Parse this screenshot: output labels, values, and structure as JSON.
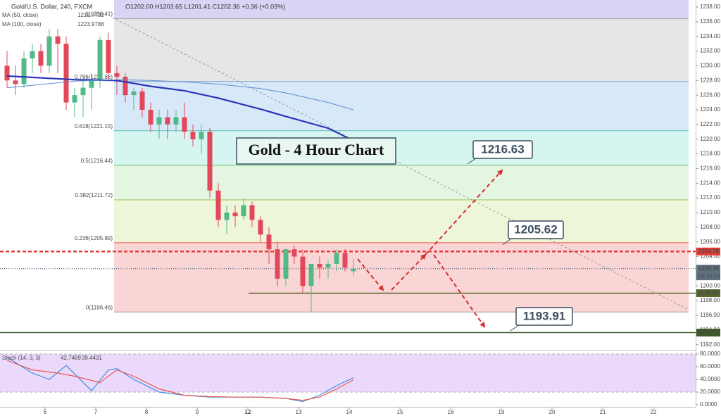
{
  "header": {
    "symbol": "Gold/U.S. Dollar, 240, FXCM",
    "ohlc": "O1202.00 H1203.65 L1201.41 C1202.36 +0.36 (+0.03%)"
  },
  "chart_data": [
    {
      "type": "candlestick",
      "title": "Gold - 4 Hour Chart",
      "up_color": "#53b987",
      "down_color": "#e2485a",
      "open": [
        1230,
        1228,
        1227.5,
        1231,
        1232,
        1230,
        1234,
        1233,
        1225,
        1226,
        1227,
        1228,
        1233.5,
        1229,
        1228.5,
        1226,
        1226.5,
        1224,
        1222,
        1223,
        1222,
        1223,
        1221,
        1220,
        1221,
        1213,
        1209,
        1210,
        1209.5,
        1211,
        1209,
        1207,
        1205,
        1201,
        1205,
        1204,
        1200,
        1203,
        1202.5,
        1203,
        1204.5,
        1202
      ],
      "high": [
        1232,
        1230,
        1232,
        1233,
        1233,
        1235,
        1235,
        1234,
        1227,
        1228,
        1229,
        1234,
        1234.5,
        1230,
        1229,
        1227,
        1227,
        1225,
        1224,
        1224,
        1224,
        1225,
        1222,
        1222,
        1221.5,
        1214,
        1211,
        1211,
        1212,
        1211.5,
        1209.5,
        1208,
        1206,
        1205,
        1205.5,
        1205,
        1203,
        1204,
        1203.5,
        1205,
        1205,
        1203.65
      ],
      "low": [
        1227,
        1226,
        1227,
        1229,
        1229,
        1229,
        1229,
        1224,
        1223,
        1223,
        1224,
        1227,
        1228,
        1226,
        1225,
        1224,
        1223,
        1221,
        1220,
        1220,
        1221,
        1220,
        1219,
        1218,
        1212,
        1208,
        1207,
        1208,
        1209,
        1208,
        1206,
        1203,
        1200,
        1200,
        1203,
        1199,
        1196.5,
        1201,
        1201,
        1202,
        1202,
        1201.41
      ],
      "close": [
        1228,
        1227.5,
        1231,
        1232,
        1230,
        1234,
        1233,
        1225,
        1226,
        1227,
        1228,
        1233.5,
        1229,
        1228.5,
        1226,
        1226.5,
        1224,
        1222,
        1223,
        1222,
        1223,
        1221,
        1220,
        1221,
        1213,
        1209,
        1210,
        1209.5,
        1211,
        1209,
        1207,
        1205,
        1201,
        1205,
        1204,
        1200,
        1203,
        1202.5,
        1203,
        1204.5,
        1202.5,
        1202.36
      ],
      "xlim": [
        -0.833,
        81.5
      ],
      "ylim": [
        1191.3,
        1238.96
      ],
      "xticks": [
        {
          "value": 4.5,
          "label": "6"
        },
        {
          "value": 10.5,
          "label": "7"
        },
        {
          "value": 16.5,
          "label": "8"
        },
        {
          "value": 22.5,
          "label": "9"
        },
        {
          "value": 28.5,
          "label": "12"
        },
        {
          "value": 34.5,
          "label": "13"
        },
        {
          "value": 40.5,
          "label": "14"
        },
        {
          "value": 46.5,
          "label": "15"
        },
        {
          "value": 52.5,
          "label": "16"
        },
        {
          "value": 58.5,
          "label": "19"
        },
        {
          "value": 64.5,
          "label": "20"
        },
        {
          "value": 70.5,
          "label": "21"
        },
        {
          "value": 76.5,
          "label": "22"
        }
      ],
      "yticks": [
        {
          "value": 1192,
          "label": "1192.00"
        },
        {
          "value": 1194,
          "label": "1194.00"
        },
        {
          "value": 1196,
          "label": "1196.00"
        },
        {
          "value": 1198,
          "label": "1198.00"
        },
        {
          "value": 1200,
          "label": "1200.00"
        },
        {
          "value": 1202,
          "label": "1202.00"
        },
        {
          "value": 1204,
          "label": "1204.00"
        },
        {
          "value": 1206,
          "label": "1206.00"
        },
        {
          "value": 1208,
          "label": "1208.00"
        },
        {
          "value": 1210,
          "label": "1210.00"
        },
        {
          "value": 1212,
          "label": "1212.00"
        },
        {
          "value": 1214,
          "label": "1214.00"
        },
        {
          "value": 1216,
          "label": "1216.00"
        },
        {
          "value": 1218,
          "label": "1218.00"
        },
        {
          "value": 1220,
          "label": "1220.00"
        },
        {
          "value": 1222,
          "label": "1222.00"
        },
        {
          "value": 1224,
          "label": "1224.00"
        },
        {
          "value": 1226,
          "label": "1226.00"
        },
        {
          "value": 1228,
          "label": "1228.00"
        },
        {
          "value": 1230,
          "label": "1230.00"
        },
        {
          "value": 1232,
          "label": "1232.00"
        },
        {
          "value": 1234,
          "label": "1234.00"
        },
        {
          "value": 1236,
          "label": "1236.00"
        },
        {
          "value": 1238,
          "label": "1238.00"
        }
      ],
      "series": [
        {
          "name": "MA (50, close)",
          "last_label": "1219.7732",
          "color": "#2a35b8",
          "x": [
            0,
            8,
            13,
            17,
            21,
            25,
            30,
            33,
            38,
            41
          ],
          "values": [
            1228.6,
            1228.1,
            1228,
            1227.2,
            1226.6,
            1225.6,
            1224.1,
            1223.1,
            1221.5,
            1219.8
          ]
        },
        {
          "name": "MA (100, close)",
          "last_label": "1223.9788",
          "color": "#5b8fd0",
          "x": [
            0,
            8,
            13,
            17,
            21,
            25,
            30,
            33,
            38,
            41
          ],
          "values": [
            1227,
            1227.9,
            1228.1,
            1228,
            1227.8,
            1227.5,
            1226.9,
            1226.3,
            1225,
            1224
          ]
        }
      ],
      "fib_levels": [
        {
          "value": 1236.41,
          "label": "1(1236.41)"
        },
        {
          "value": 1227.86,
          "label": "0.786(1227.86)"
        },
        {
          "value": 1221.15,
          "label": "0.618(1221.15)"
        },
        {
          "value": 1216.44,
          "label": "0.5(1216.44)"
        },
        {
          "value": 1211.72,
          "label": "0.382(1211.72)"
        },
        {
          "value": 1205.89,
          "label": "0.236(1205.89)"
        },
        {
          "value": 1196.46,
          "label": "0(1196.46)"
        }
      ],
      "levels": [
        {
          "value": 1204.7,
          "label": "1204.70",
          "color": "#e53935",
          "line": "dashed"
        },
        {
          "value": 1202.36,
          "label": "1202.36",
          "color": "#5f7080",
          "line": "dotted"
        },
        {
          "value": 1199.02,
          "label": "1199.02",
          "color": "#55652c",
          "line": "solid"
        },
        {
          "value": 1193.65,
          "label": "1193.65",
          "color": "#3e5a26",
          "line": "solid"
        }
      ],
      "countdown": "02:41:54",
      "targets": [
        1216.63,
        1205.62,
        1193.91
      ]
    },
    {
      "type": "line",
      "title": "Stoch (14, 3, 3)",
      "ylim": [
        0,
        80
      ],
      "band": [
        20,
        80
      ],
      "yticks": [
        {
          "value": 0,
          "label": "0.0000"
        },
        {
          "value": 20,
          "label": "20.0000"
        },
        {
          "value": 40,
          "label": "40.0000"
        },
        {
          "value": 60,
          "label": "60.0000"
        },
        {
          "value": 80,
          "label": "80.0000"
        }
      ],
      "series": [
        {
          "last_label": "42.7469",
          "color": "#3d8fe0",
          "x": [
            0,
            3,
            5,
            7,
            10,
            12,
            13,
            15,
            18,
            21,
            24,
            27,
            30,
            33,
            35,
            37,
            39,
            41
          ],
          "values": [
            75,
            50,
            40,
            62,
            22,
            55,
            57,
            40,
            20,
            15,
            12,
            12,
            12,
            10,
            5,
            15,
            30,
            42.7469
          ]
        },
        {
          "last_label": "39.4431",
          "color": "#ef5350",
          "x": [
            0,
            3,
            6,
            8,
            11,
            13,
            15,
            18,
            21,
            24,
            27,
            30,
            33,
            35,
            37,
            39,
            41
          ],
          "values": [
            70,
            55,
            50,
            45,
            35,
            55,
            45,
            25,
            15,
            13,
            12,
            12,
            10,
            7,
            12,
            25,
            39.4431
          ]
        }
      ]
    }
  ]
}
